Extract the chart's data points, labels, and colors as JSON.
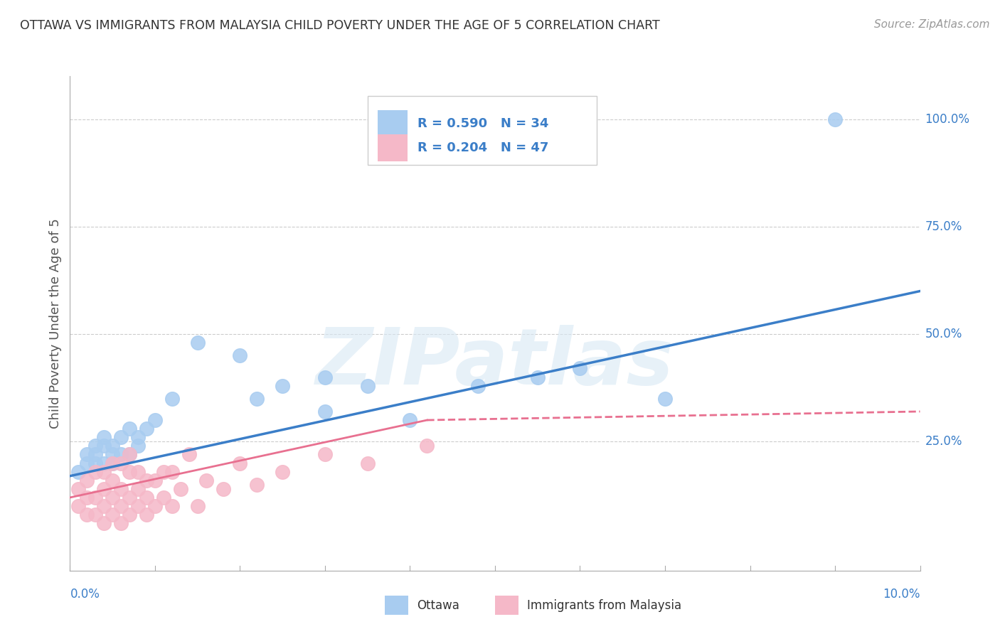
{
  "title": "OTTAWA VS IMMIGRANTS FROM MALAYSIA CHILD POVERTY UNDER THE AGE OF 5 CORRELATION CHART",
  "source": "Source: ZipAtlas.com",
  "ylabel": "Child Poverty Under the Age of 5",
  "xlim": [
    0,
    0.1
  ],
  "ylim": [
    -0.05,
    1.1
  ],
  "ottawa_R": 0.59,
  "ottawa_N": 34,
  "malaysia_R": 0.204,
  "malaysia_N": 47,
  "ottawa_color": "#A8CCF0",
  "malaysia_color": "#F5B8C8",
  "ottawa_line_color": "#3B7EC8",
  "malaysia_line_color": "#E87090",
  "watermark": "ZIPatlas",
  "ottawa_x": [
    0.001,
    0.002,
    0.002,
    0.003,
    0.003,
    0.003,
    0.004,
    0.004,
    0.004,
    0.005,
    0.005,
    0.005,
    0.006,
    0.006,
    0.007,
    0.007,
    0.008,
    0.008,
    0.009,
    0.01,
    0.012,
    0.015,
    0.02,
    0.022,
    0.025,
    0.03,
    0.03,
    0.035,
    0.04,
    0.048,
    0.055,
    0.06,
    0.07,
    0.09
  ],
  "ottawa_y": [
    0.18,
    0.2,
    0.22,
    0.2,
    0.24,
    0.22,
    0.2,
    0.24,
    0.26,
    0.22,
    0.2,
    0.24,
    0.22,
    0.26,
    0.22,
    0.28,
    0.24,
    0.26,
    0.28,
    0.3,
    0.35,
    0.48,
    0.45,
    0.35,
    0.38,
    0.32,
    0.4,
    0.38,
    0.3,
    0.38,
    0.4,
    0.42,
    0.35,
    1.0
  ],
  "malaysia_x": [
    0.001,
    0.001,
    0.002,
    0.002,
    0.002,
    0.003,
    0.003,
    0.003,
    0.004,
    0.004,
    0.004,
    0.004,
    0.005,
    0.005,
    0.005,
    0.005,
    0.006,
    0.006,
    0.006,
    0.006,
    0.007,
    0.007,
    0.007,
    0.007,
    0.008,
    0.008,
    0.008,
    0.009,
    0.009,
    0.009,
    0.01,
    0.01,
    0.011,
    0.011,
    0.012,
    0.012,
    0.013,
    0.014,
    0.015,
    0.016,
    0.018,
    0.02,
    0.022,
    0.025,
    0.03,
    0.035,
    0.042
  ],
  "malaysia_y": [
    0.1,
    0.14,
    0.08,
    0.12,
    0.16,
    0.08,
    0.12,
    0.18,
    0.06,
    0.1,
    0.14,
    0.18,
    0.08,
    0.12,
    0.16,
    0.2,
    0.06,
    0.1,
    0.14,
    0.2,
    0.08,
    0.12,
    0.18,
    0.22,
    0.1,
    0.14,
    0.18,
    0.08,
    0.12,
    0.16,
    0.1,
    0.16,
    0.12,
    0.18,
    0.1,
    0.18,
    0.14,
    0.22,
    0.1,
    0.16,
    0.14,
    0.2,
    0.15,
    0.18,
    0.22,
    0.2,
    0.24
  ]
}
